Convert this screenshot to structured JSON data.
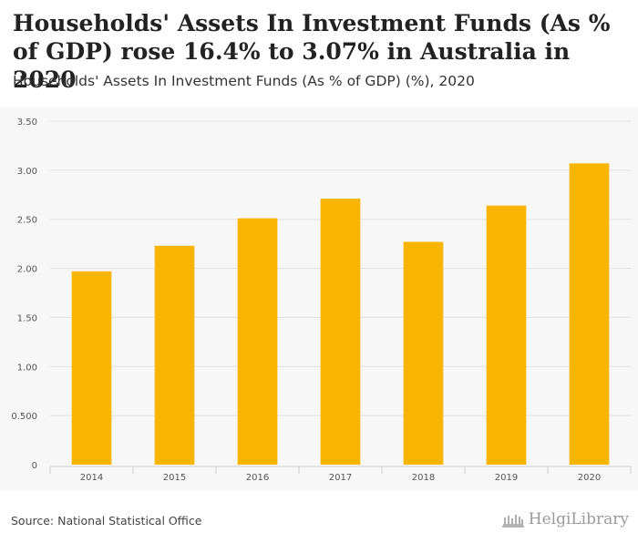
{
  "header": {
    "title": "Households' Assets In Investment Funds (As % of GDP) rose 16.4% to 3.07% in Australia in 2020",
    "subtitle": "Households' Assets In Investment Funds (As % of GDP) (%), 2020"
  },
  "footer": {
    "source": "Source: National Statistical Office",
    "brand": "HelgiLibrary"
  },
  "colors": {
    "bar": "#f7b400",
    "grid": "#e2e2e2",
    "axis_text": "#555555",
    "plot_bg": "#f7f7f7"
  },
  "chart_data": {
    "type": "bar",
    "title": "Households' Assets In Investment Funds (As % of GDP) (%), 2020",
    "xlabel": "",
    "ylabel": "",
    "categories": [
      "2014",
      "2015",
      "2016",
      "2017",
      "2018",
      "2019",
      "2020"
    ],
    "values": [
      1.97,
      2.23,
      2.51,
      2.71,
      2.27,
      2.64,
      3.07
    ],
    "ylim": [
      0,
      3.5
    ],
    "yticks": [
      0,
      0.5,
      1.0,
      1.5,
      2.0,
      2.5,
      3.0,
      3.5
    ],
    "ytick_labels": [
      "0",
      "0.500",
      "1.00",
      "1.50",
      "2.00",
      "2.50",
      "3.00",
      "3.50"
    ],
    "grid": true,
    "legend": "none"
  }
}
